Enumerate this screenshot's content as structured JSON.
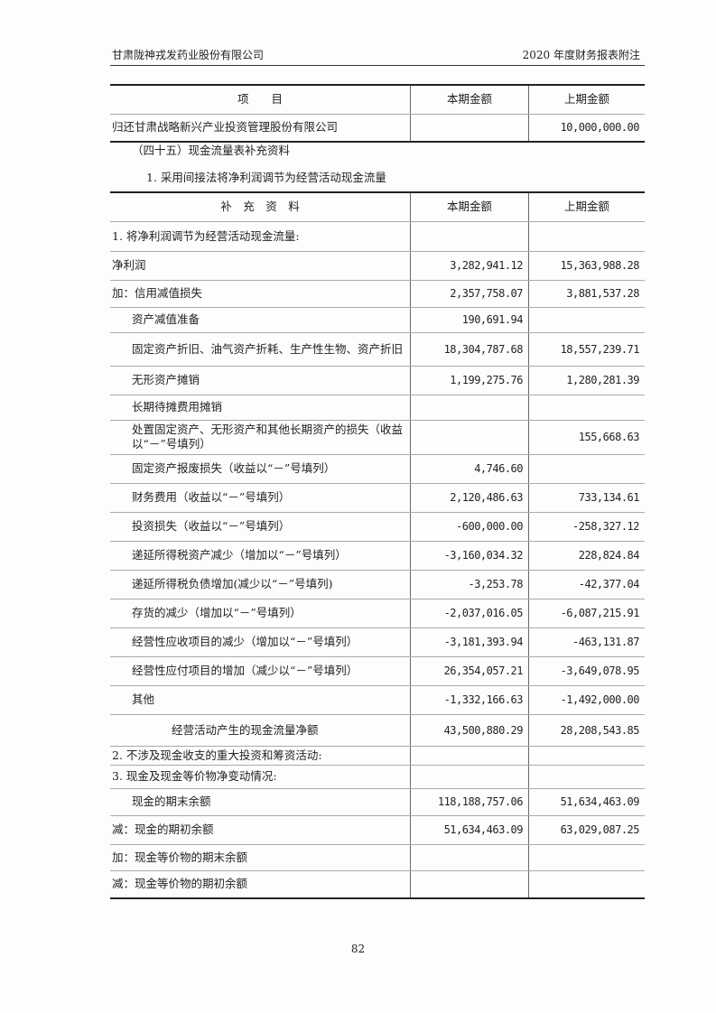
{
  "header": {
    "company": "甘肃陇神戎发药业股份有限公司",
    "report": "2020 年度财务报表附注"
  },
  "table1": {
    "headers": [
      "项　　目",
      "本期金额",
      "上期金额"
    ],
    "rows": [
      {
        "label": "归还甘肃战略新兴产业投资管理股份有限公司",
        "current": "",
        "prior": "10,000,000.00"
      }
    ]
  },
  "section_title": "（四十五）现金流量表补充资料",
  "subsection_title": "1. 采用间接法将净利润调节为经营活动现金流量",
  "table2": {
    "headers": [
      "补　充　资　料",
      "本期金额",
      "上期金额"
    ],
    "rows": [
      {
        "label": "1. 将净利润调节为经营活动现金流量:",
        "current": "",
        "prior": "",
        "indent": 0
      },
      {
        "label": "净利润",
        "current": "3,282,941.12",
        "prior": "15,363,988.28",
        "indent": 0
      },
      {
        "label": "加：信用减值损失",
        "current": "2,357,758.07",
        "prior": "3,881,537.28",
        "indent": 0
      },
      {
        "label": "资产减值准备",
        "current": "190,691.94",
        "prior": "",
        "indent": 1
      },
      {
        "label": "固定资产折旧、油气资产折耗、生产性生物、资产折旧",
        "current": "18,304,787.68",
        "prior": "18,557,239.71",
        "indent": 1
      },
      {
        "label": "无形资产摊销",
        "current": "1,199,275.76",
        "prior": "1,280,281.39",
        "indent": 1
      },
      {
        "label": "长期待摊费用摊销",
        "current": "",
        "prior": "",
        "indent": 1
      },
      {
        "label": "处置固定资产、无形资产和其他长期资产的损失（收益以“－”号填列）",
        "current": "",
        "prior": "155,668.63",
        "indent": 1
      },
      {
        "label": "固定资产报废损失（收益以“－”号填列）",
        "current": "4,746.60",
        "prior": "",
        "indent": 1
      },
      {
        "label": "财务费用（收益以“－”号填列）",
        "current": "2,120,486.63",
        "prior": "733,134.61",
        "indent": 1
      },
      {
        "label": "投资损失（收益以“－”号填列）",
        "current": "-600,000.00",
        "prior": "-258,327.12",
        "indent": 1
      },
      {
        "label": "递延所得税资产减少（增加以“－”号填列）",
        "current": "-3,160,034.32",
        "prior": "228,824.84",
        "indent": 1
      },
      {
        "label": "递延所得税负债增加(减少以“－”号填列)",
        "current": "-3,253.78",
        "prior": "-42,377.04",
        "indent": 1
      },
      {
        "label": "存货的减少（增加以“－”号填列）",
        "current": "-2,037,016.05",
        "prior": "-6,087,215.91",
        "indent": 1
      },
      {
        "label": "经营性应收项目的减少（增加以“－”号填列）",
        "current": "-3,181,393.94",
        "prior": "-463,131.87",
        "indent": 1
      },
      {
        "label": "经营性应付项目的增加（减少以“－”号填列）",
        "current": "26,354,057.21",
        "prior": "-3,649,078.95",
        "indent": 1
      },
      {
        "label": "其他",
        "current": "-1,332,166.63",
        "prior": "-1,492,000.00",
        "indent": 1
      },
      {
        "label": "经营活动产生的现金流量净额",
        "current": "43,500,880.29",
        "prior": "28,208,543.85",
        "indent": 3
      },
      {
        "label": "2. 不涉及现金收支的重大投资和筹资活动:",
        "current": "",
        "prior": "",
        "indent": 0
      },
      {
        "label": "3. 现金及现金等价物净变动情况:",
        "current": "",
        "prior": "",
        "indent": 0
      },
      {
        "label": "现金的期末余额",
        "current": "118,188,757.06",
        "prior": "51,634,463.09",
        "indent": 1
      },
      {
        "label": "减：现金的期初余额",
        "current": "51,634,463.09",
        "prior": "63,029,087.25",
        "indent": 0
      },
      {
        "label": "加：现金等价物的期末余额",
        "current": "",
        "prior": "",
        "indent": 0
      },
      {
        "label": "减：现金等价物的期初余额",
        "current": "",
        "prior": "",
        "indent": 0
      }
    ]
  },
  "page_number": "82"
}
